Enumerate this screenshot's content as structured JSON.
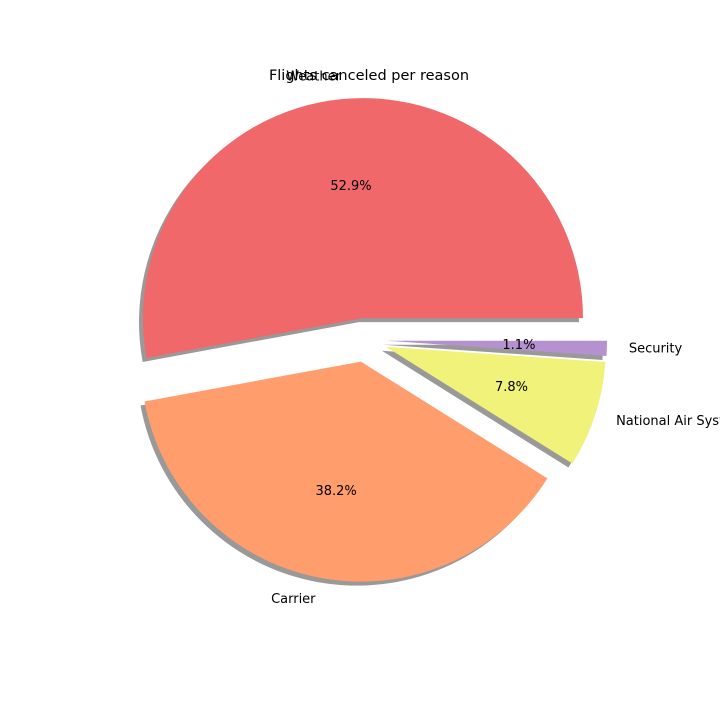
{
  "chart_data": {
    "type": "pie",
    "title": "Flights canceled per reason",
    "start_angle_deg": 0,
    "direction": "counterclockwise",
    "shadow": true,
    "slices": [
      {
        "label": "Weather",
        "percent": 52.9,
        "percent_label": "52.9%",
        "color": "#F0686A",
        "exploded": true
      },
      {
        "label": "Carrier",
        "percent": 38.2,
        "percent_label": "38.2%",
        "color": "#FF9D6C",
        "exploded": true
      },
      {
        "label": "National Air System",
        "percent": 7.8,
        "percent_label": "7.8%",
        "color": "#F0F27A",
        "exploded": true
      },
      {
        "label": "Security",
        "percent": 1.1,
        "percent_label": "1.1%",
        "color": "#B591D0",
        "exploded": true
      }
    ]
  }
}
